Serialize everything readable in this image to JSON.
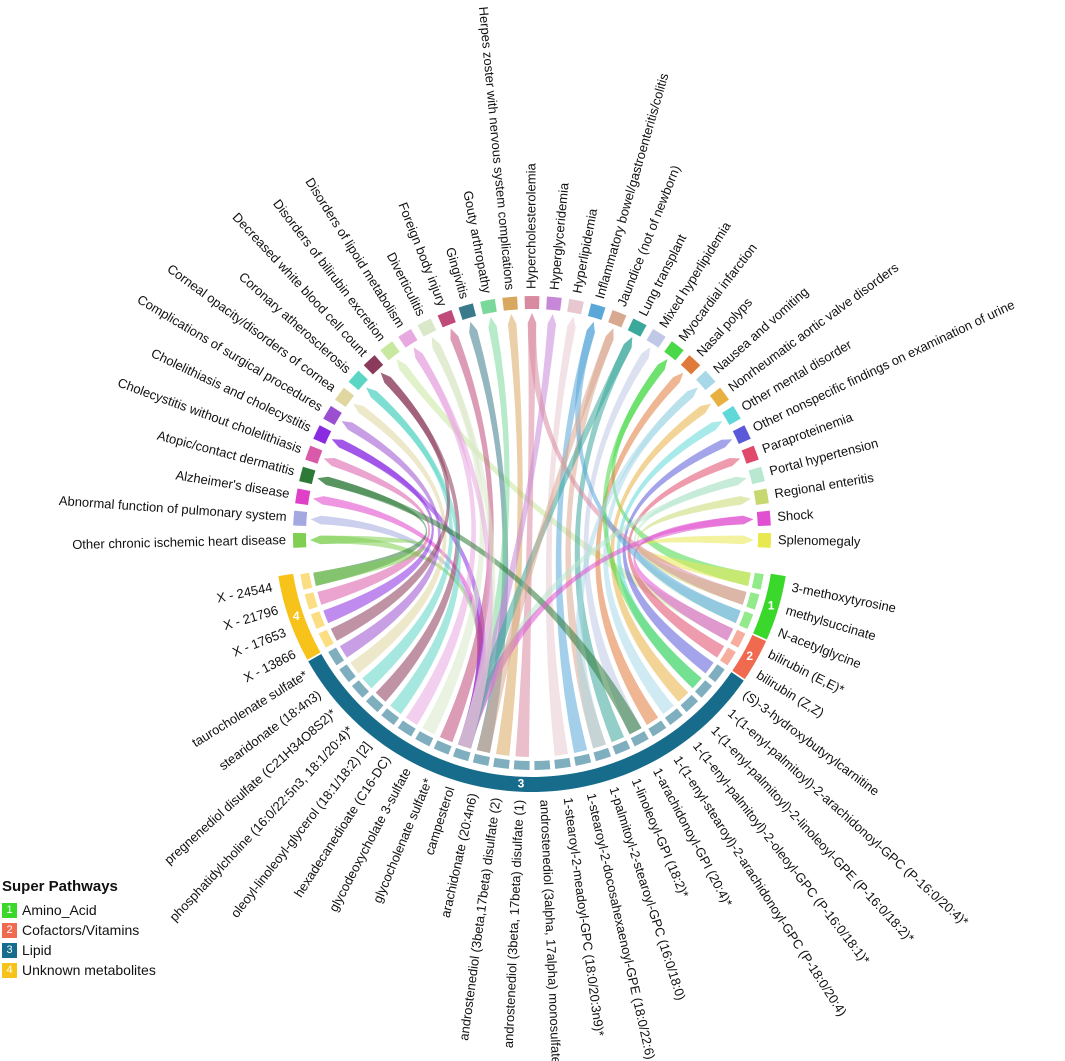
{
  "diseases": [
    {
      "name": "Other chronic ischemic heart disease",
      "color": "#7fcf52"
    },
    {
      "name": "Abnormal function of pulmonary system",
      "color": "#a4a8e0"
    },
    {
      "name": "Alzheimer's disease",
      "color": "#e040c8"
    },
    {
      "name": "Atopic/contact dermatitis",
      "color": "#2d7a38"
    },
    {
      "name": "Cholecystitis without cholelithiasis",
      "color": "#d85aa8"
    },
    {
      "name": "Cholelithiasis and cholecystitis",
      "color": "#8a2be2"
    },
    {
      "name": "Complications of surgical procedures",
      "color": "#9a4fd0"
    },
    {
      "name": "Corneal opacity/disorders of cornea",
      "color": "#e0d6a0"
    },
    {
      "name": "Coronary atherosclerosis",
      "color": "#5cd6c4"
    },
    {
      "name": "Decreased white blood cell count",
      "color": "#8a3a5a"
    },
    {
      "name": "Disorders of bilirubin excretion",
      "color": "#c8e8a0"
    },
    {
      "name": "Disorders of lipoid metabolism",
      "color": "#e8a8e0"
    },
    {
      "name": "Diverticulitis",
      "color": "#d8e8c8"
    },
    {
      "name": "Foreign body injury",
      "color": "#c04a7a"
    },
    {
      "name": "Gingivitis",
      "color": "#3a7a8a"
    },
    {
      "name": "Gouty arthropathy",
      "color": "#7ad89a"
    },
    {
      "name": "Herpes zoster with nervous system complications",
      "color": "#d8a860"
    },
    {
      "name": "Hypercholesterolemia",
      "color": "#d88aa0"
    },
    {
      "name": "Hyperglyceridemia",
      "color": "#c888d8"
    },
    {
      "name": "Hyperlipidemia",
      "color": "#e8c8d0"
    },
    {
      "name": "Inflammatory bowel/gastroenteritis/colitis",
      "color": "#5aa8d8"
    },
    {
      "name": "Jaundice (not of newborn)",
      "color": "#d8a890"
    },
    {
      "name": "Lung transplant",
      "color": "#3aa89a"
    },
    {
      "name": "Mixed hyperlipidemia",
      "color": "#c0c8e8"
    },
    {
      "name": "Myocardial infarction",
      "color": "#48d848"
    },
    {
      "name": "Nasal polyps",
      "color": "#e07a3a"
    },
    {
      "name": "Nausea and vomiting",
      "color": "#a8d8e8"
    },
    {
      "name": "Nonrheumatic aortic valve disorders",
      "color": "#e8b040"
    },
    {
      "name": "Other mental disorder",
      "color": "#60d8d8"
    },
    {
      "name": "Other nonspecific findings on examination of urine",
      "color": "#5a5ad8"
    },
    {
      "name": "Paraproteinemia",
      "color": "#e04a6a"
    },
    {
      "name": "Portal hypertension",
      "color": "#b8e8d0"
    },
    {
      "name": "Regional enteritis",
      "color": "#c8d870"
    },
    {
      "name": "Shock",
      "color": "#e050d0"
    },
    {
      "name": "Splenomegaly",
      "color": "#e8e850"
    }
  ],
  "metabolites": [
    {
      "name": "3-methoxytyrosine",
      "pathway": 1
    },
    {
      "name": "methylsuccinate",
      "pathway": 1
    },
    {
      "name": "N-acetylglycine",
      "pathway": 1
    },
    {
      "name": "bilirubin (E,E)*",
      "pathway": 2
    },
    {
      "name": "bilirubin (Z,Z)",
      "pathway": 2
    },
    {
      "name": "(S)-3-hydroxybutyrylcarnitine",
      "pathway": 3
    },
    {
      "name": "1-(1-enyl-palmitoyl)-2-arachidonoyl-GPC (P-16:0/20:4)*",
      "pathway": 3
    },
    {
      "name": "1-(1-enyl-palmitoyl)-2-linoleoyl-GPE (P-16:0/18:2)*",
      "pathway": 3
    },
    {
      "name": "1-(1-enyl-palmitoyl)-2-oleoyl-GPC (P-16:0/18:1)*",
      "pathway": 3
    },
    {
      "name": "1-(1-enyl-stearoyl)-2-arachidonoyl-GPC (P-18:0/20:4)",
      "pathway": 3
    },
    {
      "name": "1-arachidonoyl-GPI (20:4)*",
      "pathway": 3
    },
    {
      "name": "1-linoleoyl-GPI (18:2)*",
      "pathway": 3
    },
    {
      "name": "1-palmitoyl-2-stearoyl-GPC (16:0/18:0)",
      "pathway": 3
    },
    {
      "name": "1-stearoyl-2-docosahexaenoyl-GPE (18:0/22:6)",
      "pathway": 3
    },
    {
      "name": "1-stearoyl-2-meadoyl-GPC (18:0/20:3n9)*",
      "pathway": 3
    },
    {
      "name": "androstenediol (3alpha, 17alpha) monosulfate",
      "pathway": 3
    },
    {
      "name": "androstenediol (3beta, 17beta) disulfate (1)",
      "pathway": 3
    },
    {
      "name": "androstenediol (3beta,17beta) disulfate (2)",
      "pathway": 3
    },
    {
      "name": "arachidonate (20:4n6)",
      "pathway": 3
    },
    {
      "name": "campesterol",
      "pathway": 3
    },
    {
      "name": "glycocholenate sulfate*",
      "pathway": 3
    },
    {
      "name": "glycodeoxycholate 3-sulfate",
      "pathway": 3
    },
    {
      "name": "hexadecanedioate (C16-DC)",
      "pathway": 3
    },
    {
      "name": "oleoyl-linoleoyl-glycerol (18:1/18:2) [2]",
      "pathway": 3
    },
    {
      "name": "phosphatidylcholine (16:0/22:5n3, 18:1/20:4)*",
      "pathway": 3
    },
    {
      "name": "pregnenediol disulfate (C21H34O8S2)*",
      "pathway": 3
    },
    {
      "name": "stearidonate (18:4n3)",
      "pathway": 3
    },
    {
      "name": "taurocholenate sulfate*",
      "pathway": 3
    },
    {
      "name": "X - 13866",
      "pathway": 4
    },
    {
      "name": "X - 17653",
      "pathway": 4
    },
    {
      "name": "X - 21796",
      "pathway": 4
    },
    {
      "name": "X - 24544",
      "pathway": 4
    }
  ],
  "links": [
    [
      0,
      19
    ],
    [
      1,
      19
    ],
    [
      2,
      19
    ],
    [
      3,
      31
    ],
    [
      4,
      30
    ],
    [
      5,
      19
    ],
    [
      6,
      27
    ],
    [
      7,
      26
    ],
    [
      8,
      25
    ],
    [
      9,
      24
    ],
    [
      10,
      3
    ],
    [
      11,
      22
    ],
    [
      12,
      21
    ],
    [
      13,
      20
    ],
    [
      14,
      18
    ],
    [
      15,
      19
    ],
    [
      16,
      17
    ],
    [
      17,
      16
    ],
    [
      18,
      19
    ],
    [
      19,
      14
    ],
    [
      20,
      13
    ],
    [
      21,
      12
    ],
    [
      22,
      11
    ],
    [
      23,
      10
    ],
    [
      24,
      0
    ],
    [
      25,
      9
    ],
    [
      26,
      8
    ],
    [
      27,
      7
    ],
    [
      28,
      6
    ],
    [
      29,
      5
    ],
    [
      30,
      4
    ],
    [
      31,
      2
    ],
    [
      32,
      1
    ],
    [
      33,
      3
    ],
    [
      34,
      0
    ],
    [
      0,
      31
    ],
    [
      5,
      29
    ],
    [
      8,
      23
    ],
    [
      9,
      28
    ],
    [
      17,
      1
    ],
    [
      20,
      2
    ],
    [
      24,
      6
    ],
    [
      26,
      12
    ],
    [
      31,
      19
    ],
    [
      3,
      10
    ],
    [
      33,
      19
    ],
    [
      22,
      19
    ],
    [
      12,
      19
    ],
    [
      11,
      19
    ],
    [
      21,
      18
    ]
  ],
  "legend": {
    "title": "Super Pathways",
    "items": [
      {
        "num": "1",
        "label": "Amino_Acid",
        "color": "#39d82a"
      },
      {
        "num": "2",
        "label": "Cofactors/Vitamins",
        "color": "#ef6a4e"
      },
      {
        "num": "3",
        "label": "Lipid",
        "color": "#166c8a"
      },
      {
        "num": "4",
        "label": "Unknown metabolites",
        "color": "#f7c21a"
      }
    ]
  }
}
